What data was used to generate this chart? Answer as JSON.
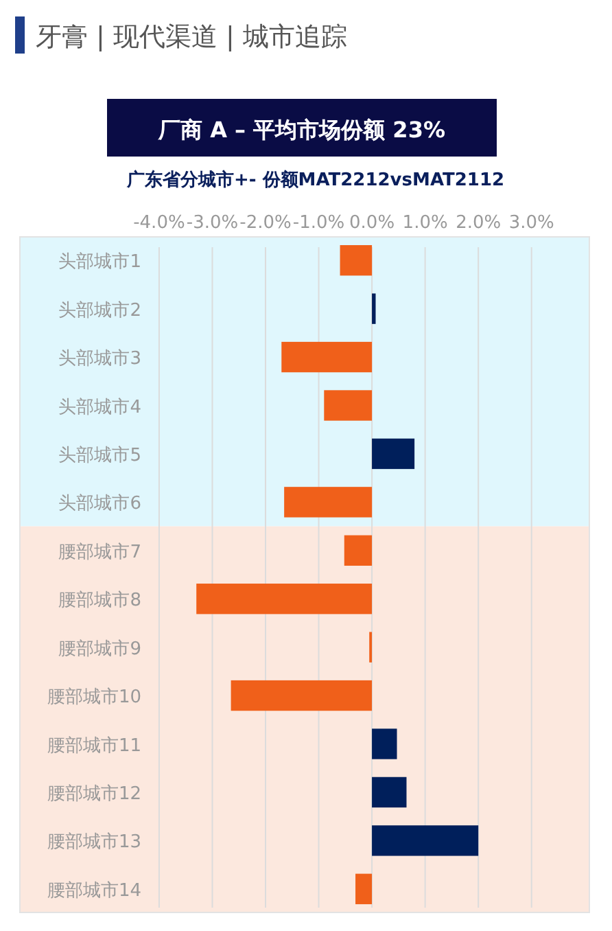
{
  "chart_data": {
    "type": "bar",
    "orientation": "horizontal",
    "title": "牙膏 | 现代渠道 | 城市追踪",
    "subtitle": "厂商 A – 平均市场份额 23%",
    "annotations": [
      "广东省分城市+- 份额MAT2212vsMAT2112"
    ],
    "categories": [
      "头部城市1",
      "头部城市2",
      "头部城市3",
      "头部城市4",
      "头部城市5",
      "头部城市6",
      "腰部城市7",
      "腰部城市8",
      "腰部城市9",
      "腰部城市10",
      "腰部城市11",
      "腰部城市12",
      "腰部城市13",
      "腰部城市14"
    ],
    "values": [
      -0.6,
      0.07,
      -1.7,
      -0.9,
      0.8,
      -1.65,
      -0.52,
      -3.3,
      -0.05,
      -2.65,
      0.47,
      0.65,
      2.0,
      -0.31
    ],
    "colors": [
      "#f0601a",
      "#001f5b",
      "#f0601a",
      "#f0601a",
      "#001f5b",
      "#f0601a",
      "#f0601a",
      "#f0601a",
      "#f0601a",
      "#f0601a",
      "#001f5b",
      "#001f5b",
      "#001f5b",
      "#f0601a"
    ],
    "xlim": [
      -6.63,
      4.1
    ],
    "xticks": [
      {
        "value": -4,
        "label": "-4.0%"
      },
      {
        "value": -3,
        "label": "-3.0%"
      },
      {
        "value": -2,
        "label": "-2.0%"
      },
      {
        "value": -1,
        "label": "-1.0%"
      },
      {
        "value": 0,
        "label": "0.0%"
      },
      {
        "value": 1,
        "label": "1.0%"
      },
      {
        "value": 2,
        "label": "2.0%"
      },
      {
        "value": 3,
        "label": "3.0%"
      }
    ],
    "grid": "x",
    "bands": [
      {
        "axis": "y",
        "from": "头部城市1",
        "to": "头部城市6",
        "color": "#e0f7fd"
      },
      {
        "axis": "y",
        "from": "腰部城市7",
        "to": "腰部城市14",
        "color": "#fce8de"
      }
    ]
  }
}
